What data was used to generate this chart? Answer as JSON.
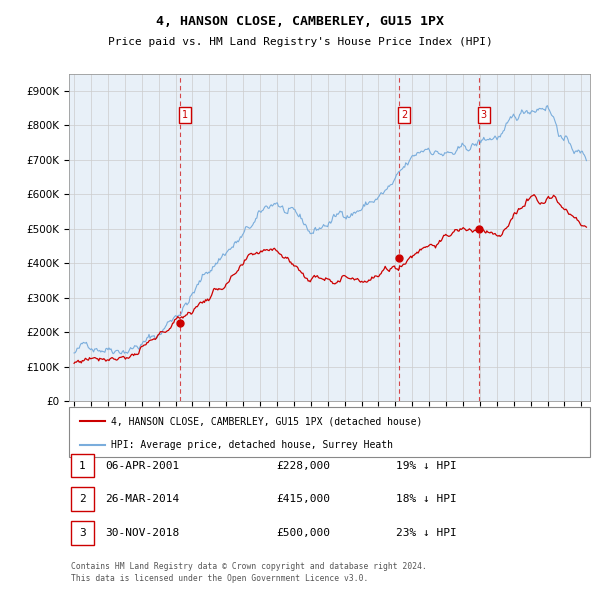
{
  "title": "4, HANSON CLOSE, CAMBERLEY, GU15 1PX",
  "subtitle": "Price paid vs. HM Land Registry's House Price Index (HPI)",
  "legend_line1": "4, HANSON CLOSE, CAMBERLEY, GU15 1PX (detached house)",
  "legend_line2": "HPI: Average price, detached house, Surrey Heath",
  "transactions": [
    {
      "num": 1,
      "date": "06-APR-2001",
      "price": "£228,000",
      "hpi_pct": "19% ↓ HPI"
    },
    {
      "num": 2,
      "date": "26-MAR-2014",
      "price": "£415,000",
      "hpi_pct": "18% ↓ HPI"
    },
    {
      "num": 3,
      "date": "30-NOV-2018",
      "price": "£500,000",
      "hpi_pct": "23% ↓ HPI"
    }
  ],
  "sale_years": [
    2001.27,
    2014.23,
    2018.92
  ],
  "sale_prices": [
    228000,
    415000,
    500000
  ],
  "footer": "Contains HM Land Registry data © Crown copyright and database right 2024.\nThis data is licensed under the Open Government Licence v3.0.",
  "red_color": "#cc0000",
  "blue_color": "#7aaddc",
  "blue_fill": "#ddeeff",
  "marker_box_color": "#cc0000",
  "grid_color": "#cccccc",
  "background_color": "#ffffff",
  "chart_bg": "#e8f0f8",
  "ylim": [
    0,
    950000
  ],
  "yticks": [
    0,
    100000,
    200000,
    300000,
    400000,
    500000,
    600000,
    700000,
    800000,
    900000
  ],
  "xlim_start": 1994.7,
  "xlim_end": 2025.5
}
